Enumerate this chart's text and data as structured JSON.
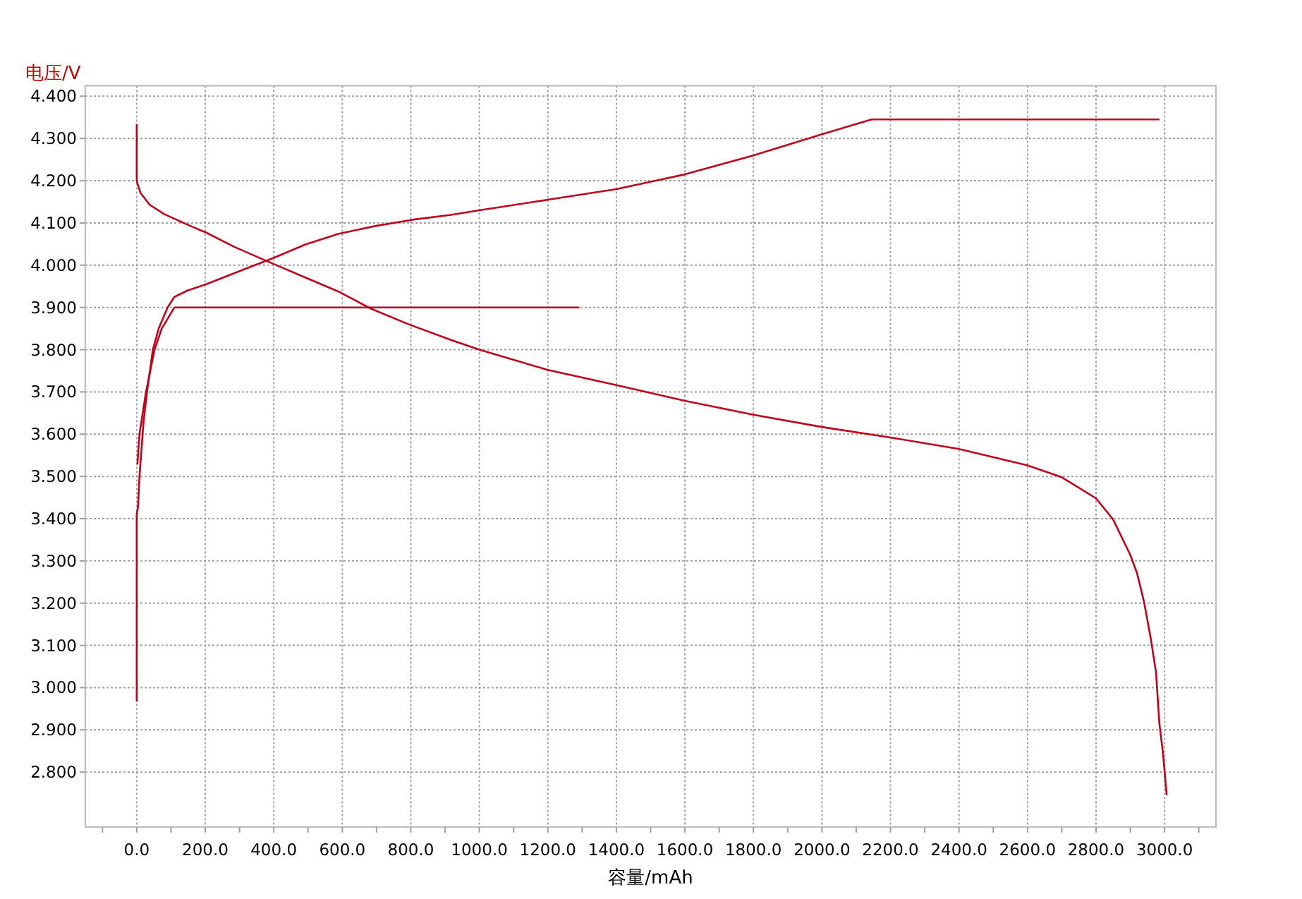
{
  "chart_data": {
    "type": "line",
    "xlabel": "容量/mAh",
    "ylabel": "电压/V",
    "xlim": [
      -150,
      3150
    ],
    "ylim": [
      2.67,
      4.425
    ],
    "xticks": [
      {
        "value": -100,
        "label": null
      },
      {
        "value": 0,
        "label": "0.0"
      },
      {
        "value": 100,
        "label": null
      },
      {
        "value": 200,
        "label": "200.0"
      },
      {
        "value": 300,
        "label": null
      },
      {
        "value": 400,
        "label": "400.0"
      },
      {
        "value": 500,
        "label": null
      },
      {
        "value": 600,
        "label": "600.0"
      },
      {
        "value": 700,
        "label": null
      },
      {
        "value": 800,
        "label": "800.0"
      },
      {
        "value": 900,
        "label": null
      },
      {
        "value": 1000,
        "label": "1000.0"
      },
      {
        "value": 1100,
        "label": null
      },
      {
        "value": 1200,
        "label": "1200.0"
      },
      {
        "value": 1300,
        "label": null
      },
      {
        "value": 1400,
        "label": "1400.0"
      },
      {
        "value": 1500,
        "label": null
      },
      {
        "value": 1600,
        "label": "1600.0"
      },
      {
        "value": 1700,
        "label": null
      },
      {
        "value": 1800,
        "label": "1800.0"
      },
      {
        "value": 1900,
        "label": null
      },
      {
        "value": 2000,
        "label": "2000.0"
      },
      {
        "value": 2100,
        "label": null
      },
      {
        "value": 2200,
        "label": "2200.0"
      },
      {
        "value": 2300,
        "label": null
      },
      {
        "value": 2400,
        "label": "2400.0"
      },
      {
        "value": 2500,
        "label": null
      },
      {
        "value": 2600,
        "label": "2600.0"
      },
      {
        "value": 2700,
        "label": null
      },
      {
        "value": 2800,
        "label": "2800.0"
      },
      {
        "value": 2900,
        "label": null
      },
      {
        "value": 3000,
        "label": "3000.0"
      },
      {
        "value": 3100,
        "label": null
      }
    ],
    "yticks": [
      {
        "value": 2.8,
        "label": "2.800"
      },
      {
        "value": 2.9,
        "label": "2.900"
      },
      {
        "value": 3.0,
        "label": "3.000"
      },
      {
        "value": 3.1,
        "label": "3.100"
      },
      {
        "value": 3.2,
        "label": "3.200"
      },
      {
        "value": 3.3,
        "label": "3.300"
      },
      {
        "value": 3.4,
        "label": "3.400"
      },
      {
        "value": 3.5,
        "label": "3.500"
      },
      {
        "value": 3.6,
        "label": "3.600"
      },
      {
        "value": 3.7,
        "label": "3.700"
      },
      {
        "value": 3.8,
        "label": "3.800"
      },
      {
        "value": 3.9,
        "label": "3.900"
      },
      {
        "value": 4.0,
        "label": "4.000"
      },
      {
        "value": 4.1,
        "label": "4.100"
      },
      {
        "value": 4.2,
        "label": "4.200"
      },
      {
        "value": 4.3,
        "label": "4.300"
      },
      {
        "value": 4.4,
        "label": "4.400"
      }
    ],
    "grid": true,
    "marker": "none",
    "line_style": "solid",
    "series": [
      {
        "color": "#c0001a",
        "x": [
          0,
          0,
          4,
          8,
          20,
          30,
          47,
          64,
          90,
          110,
          148,
          203,
          313,
          402,
          492,
          588,
          698,
          808,
          917,
          1000,
          1200,
          1400,
          1600,
          1800,
          2000,
          2145,
          2983
        ],
        "values": [
          2.969,
          3.41,
          3.43,
          3.5,
          3.63,
          3.7,
          3.8,
          3.85,
          3.9,
          3.925,
          3.94,
          3.955,
          3.99,
          4.018,
          4.049,
          4.074,
          4.093,
          4.108,
          4.119,
          4.13,
          4.155,
          4.18,
          4.215,
          4.26,
          4.31,
          4.345,
          4.345
        ]
      },
      {
        "color": "#c0001a",
        "x": [
          2,
          8,
          27,
          52,
          73,
          110,
          1290
        ],
        "values": [
          3.53,
          3.6,
          3.7,
          3.8,
          3.85,
          3.9,
          3.9
        ]
      },
      {
        "color": "#c0001a",
        "x": [
          0,
          0,
          11,
          38,
          80,
          148,
          203,
          286,
          396,
          492,
          588,
          684,
          794,
          917,
          1000,
          1200,
          1400,
          1600,
          1800,
          2000,
          2200,
          2400,
          2600,
          2700,
          2800,
          2850,
          2900,
          2920,
          2940,
          2960,
          2975,
          2985,
          2995,
          3006
        ],
        "values": [
          4.332,
          4.199,
          4.171,
          4.143,
          4.121,
          4.096,
          4.077,
          4.043,
          4.004,
          3.971,
          3.938,
          3.897,
          3.86,
          3.823,
          3.8,
          3.752,
          3.716,
          3.679,
          3.646,
          3.617,
          3.592,
          3.565,
          3.526,
          3.498,
          3.448,
          3.398,
          3.314,
          3.27,
          3.203,
          3.115,
          3.036,
          2.914,
          2.848,
          2.747
        ]
      }
    ]
  }
}
